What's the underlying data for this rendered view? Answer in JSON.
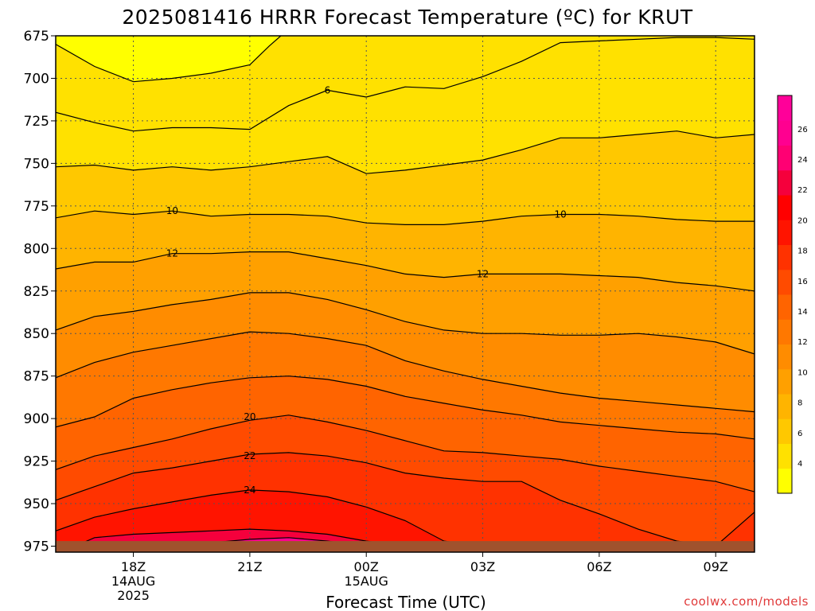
{
  "chart_data": {
    "type": "contour",
    "title": "2025081416 HRRR Forecast Temperature (ºC) for KRUT",
    "xlabel": "Forecast Time (UTC)",
    "credit": "coolwx.com/models",
    "y_axis": {
      "label": "",
      "ticks": [
        "675",
        "700",
        "725",
        "750",
        "775",
        "800",
        "825",
        "850",
        "875",
        "900",
        "925",
        "950",
        "975"
      ],
      "range": [
        675,
        975
      ],
      "inverted": true
    },
    "x_axis": {
      "ticks": [
        {
          "label": "18Z",
          "sub1": "14AUG",
          "sub2": "2025",
          "hour": 2
        },
        {
          "label": "21Z",
          "sub1": "",
          "sub2": "",
          "hour": 5
        },
        {
          "label": "00Z",
          "sub1": "15AUG",
          "sub2": "",
          "hour": 8
        },
        {
          "label": "03Z",
          "sub1": "",
          "sub2": "",
          "hour": 11
        },
        {
          "label": "06Z",
          "sub1": "",
          "sub2": "",
          "hour": 14
        },
        {
          "label": "09Z",
          "sub1": "",
          "sub2": "",
          "hour": 17
        }
      ],
      "range": [
        0,
        18
      ]
    },
    "grid": true,
    "colorbar": {
      "ticks": [
        "4",
        "6",
        "8",
        "10",
        "12",
        "14",
        "16",
        "18",
        "20",
        "22",
        "24",
        "26"
      ],
      "colors": [
        "#ffff00",
        "#ffe100",
        "#ffc800",
        "#ffb400",
        "#ffa000",
        "#ff8c00",
        "#ff7800",
        "#ff6400",
        "#ff4b00",
        "#ff3200",
        "#ff1400",
        "#ff0000",
        "#f5003c",
        "#ff0073",
        "#ff0090",
        "#ff0099"
      ]
    },
    "contour_labels": [
      {
        "text": "6",
        "hour": 7.0,
        "p": 707
      },
      {
        "text": "10",
        "hour": 3.0,
        "p": 778
      },
      {
        "text": "10",
        "hour": 13.0,
        "p": 780
      },
      {
        "text": "12",
        "hour": 3.0,
        "p": 803
      },
      {
        "text": "12",
        "hour": 11.0,
        "p": 815
      },
      {
        "text": "20",
        "hour": 5.0,
        "p": 899
      },
      {
        "text": "22",
        "hour": 5.0,
        "p": 922
      },
      {
        "text": "24",
        "hour": 5.0,
        "p": 942
      }
    ],
    "isotherms": [
      {
        "value": 6,
        "color": "#ffe100",
        "points": [
          [
            0,
            720
          ],
          [
            1,
            726
          ],
          [
            2,
            731
          ],
          [
            3,
            729
          ],
          [
            4,
            729
          ],
          [
            5,
            730
          ],
          [
            6,
            716
          ],
          [
            7,
            707
          ],
          [
            8,
            711
          ],
          [
            9,
            705
          ],
          [
            10,
            706
          ],
          [
            11,
            699
          ],
          [
            12,
            690
          ],
          [
            13,
            679
          ],
          [
            14,
            678
          ],
          [
            15,
            677
          ],
          [
            16,
            676
          ],
          [
            17,
            676
          ],
          [
            18,
            677
          ]
        ]
      },
      {
        "value": 8,
        "color": "#ffc800",
        "points": [
          [
            0,
            752
          ],
          [
            1,
            751
          ],
          [
            2,
            754
          ],
          [
            3,
            752
          ],
          [
            4,
            754
          ],
          [
            5,
            752
          ],
          [
            6,
            749
          ],
          [
            7,
            746
          ],
          [
            8,
            756
          ],
          [
            9,
            754
          ],
          [
            10,
            751
          ],
          [
            11,
            748
          ],
          [
            12,
            742
          ],
          [
            13,
            735
          ],
          [
            14,
            735
          ],
          [
            15,
            733
          ],
          [
            16,
            731
          ],
          [
            17,
            735
          ],
          [
            18,
            733
          ]
        ]
      },
      {
        "value": 10,
        "color": "#ffb400",
        "points": [
          [
            0,
            782
          ],
          [
            1,
            778
          ],
          [
            2,
            780
          ],
          [
            3,
            778
          ],
          [
            4,
            781
          ],
          [
            5,
            780
          ],
          [
            6,
            780
          ],
          [
            7,
            781
          ],
          [
            8,
            785
          ],
          [
            9,
            786
          ],
          [
            10,
            786
          ],
          [
            11,
            784
          ],
          [
            12,
            781
          ],
          [
            13,
            780
          ],
          [
            14,
            780
          ],
          [
            15,
            781
          ],
          [
            16,
            783
          ],
          [
            17,
            784
          ],
          [
            18,
            784
          ]
        ]
      },
      {
        "value": 12,
        "color": "#ffa000",
        "points": [
          [
            0,
            812
          ],
          [
            1,
            808
          ],
          [
            2,
            808
          ],
          [
            3,
            803
          ],
          [
            4,
            803
          ],
          [
            5,
            802
          ],
          [
            6,
            802
          ],
          [
            7,
            806
          ],
          [
            8,
            810
          ],
          [
            9,
            815
          ],
          [
            10,
            817
          ],
          [
            11,
            815
          ],
          [
            12,
            815
          ],
          [
            13,
            815
          ],
          [
            14,
            816
          ],
          [
            15,
            817
          ],
          [
            16,
            820
          ],
          [
            17,
            822
          ],
          [
            18,
            825
          ]
        ]
      },
      {
        "value": 14,
        "color": "#ff8c00",
        "points": [
          [
            0,
            848
          ],
          [
            1,
            840
          ],
          [
            2,
            837
          ],
          [
            3,
            833
          ],
          [
            4,
            830
          ],
          [
            5,
            826
          ],
          [
            6,
            826
          ],
          [
            7,
            830
          ],
          [
            8,
            836
          ],
          [
            9,
            843
          ],
          [
            10,
            848
          ],
          [
            11,
            850
          ],
          [
            12,
            850
          ],
          [
            13,
            851
          ],
          [
            14,
            851
          ],
          [
            15,
            850
          ],
          [
            16,
            852
          ],
          [
            17,
            855
          ],
          [
            18,
            862
          ]
        ]
      },
      {
        "value": 16,
        "color": "#ff7800",
        "points": [
          [
            0,
            876
          ],
          [
            1,
            867
          ],
          [
            2,
            861
          ],
          [
            3,
            857
          ],
          [
            4,
            853
          ],
          [
            5,
            849
          ],
          [
            6,
            850
          ],
          [
            7,
            853
          ],
          [
            8,
            857
          ],
          [
            9,
            866
          ],
          [
            10,
            872
          ],
          [
            11,
            877
          ],
          [
            12,
            881
          ],
          [
            13,
            885
          ],
          [
            14,
            888
          ],
          [
            15,
            890
          ],
          [
            16,
            892
          ],
          [
            17,
            894
          ],
          [
            18,
            896
          ]
        ]
      },
      {
        "value": 18,
        "color": "#ff6400",
        "points": [
          [
            0,
            905
          ],
          [
            1,
            899
          ],
          [
            2,
            888
          ],
          [
            3,
            883
          ],
          [
            4,
            879
          ],
          [
            5,
            876
          ],
          [
            6,
            875
          ],
          [
            7,
            877
          ],
          [
            8,
            881
          ],
          [
            9,
            887
          ],
          [
            10,
            891
          ],
          [
            11,
            895
          ],
          [
            12,
            898
          ],
          [
            13,
            902
          ],
          [
            14,
            904
          ],
          [
            15,
            906
          ],
          [
            16,
            908
          ],
          [
            17,
            909
          ],
          [
            18,
            912
          ]
        ]
      },
      {
        "value": 20,
        "color": "#ff4b00",
        "points": [
          [
            0,
            930
          ],
          [
            1,
            922
          ],
          [
            2,
            917
          ],
          [
            3,
            912
          ],
          [
            4,
            906
          ],
          [
            5,
            901
          ],
          [
            6,
            898
          ],
          [
            7,
            902
          ],
          [
            8,
            907
          ],
          [
            9,
            913
          ],
          [
            10,
            919
          ],
          [
            11,
            920
          ],
          [
            12,
            922
          ],
          [
            13,
            924
          ],
          [
            14,
            928
          ],
          [
            15,
            931
          ],
          [
            16,
            934
          ],
          [
            17,
            937
          ],
          [
            18,
            943
          ]
        ]
      },
      {
        "value": 22,
        "color": "#ff3200",
        "points": [
          [
            0,
            948
          ],
          [
            1,
            940
          ],
          [
            2,
            932
          ],
          [
            3,
            929
          ],
          [
            4,
            925
          ],
          [
            5,
            921
          ],
          [
            6,
            920
          ],
          [
            7,
            922
          ],
          [
            8,
            926
          ],
          [
            9,
            932
          ],
          [
            10,
            935
          ],
          [
            11,
            937
          ],
          [
            12,
            937
          ],
          [
            13,
            948
          ],
          [
            14,
            956
          ],
          [
            15,
            965
          ],
          [
            16,
            972
          ],
          [
            17,
            975
          ],
          [
            18,
            955
          ]
        ]
      },
      {
        "value": 24,
        "color": "#ff1400",
        "points": [
          [
            0,
            966
          ],
          [
            1,
            958
          ],
          [
            2,
            953
          ],
          [
            3,
            949
          ],
          [
            4,
            945
          ],
          [
            5,
            942
          ],
          [
            6,
            943
          ],
          [
            7,
            946
          ],
          [
            8,
            952
          ],
          [
            9,
            960
          ],
          [
            10,
            972
          ],
          [
            11,
            975
          ],
          [
            12,
            975
          ],
          [
            13,
            975
          ],
          [
            14,
            975
          ],
          [
            15,
            975
          ],
          [
            16,
            975
          ],
          [
            17,
            975
          ],
          [
            18,
            975
          ]
        ]
      },
      {
        "value": 26,
        "color": "#f5003c",
        "points": [
          [
            0,
            980
          ],
          [
            1,
            970
          ],
          [
            2,
            968
          ],
          [
            3,
            967
          ],
          [
            4,
            966
          ],
          [
            5,
            965
          ],
          [
            6,
            966
          ],
          [
            7,
            968
          ],
          [
            8,
            972
          ],
          [
            9,
            975
          ],
          [
            10,
            978
          ],
          [
            11,
            980
          ],
          [
            12,
            980
          ],
          [
            13,
            980
          ],
          [
            14,
            980
          ],
          [
            15,
            980
          ],
          [
            16,
            980
          ],
          [
            17,
            980
          ],
          [
            18,
            980
          ]
        ]
      }
    ],
    "warm_core": {
      "value": 27,
      "color": "#ff0090",
      "points": [
        [
          2,
          980
        ],
        [
          3,
          976
        ],
        [
          4,
          973
        ],
        [
          5,
          971
        ],
        [
          6,
          970
        ],
        [
          7,
          972
        ],
        [
          8,
          975
        ],
        [
          9,
          980
        ]
      ]
    },
    "cold_core": {
      "value": 4,
      "color": "#ffff00",
      "points": [
        [
          0,
          680
        ],
        [
          1,
          693
        ],
        [
          2,
          702
        ],
        [
          3,
          700
        ],
        [
          4,
          697
        ],
        [
          5,
          692
        ],
        [
          5.5,
          681
        ],
        [
          5.8,
          675
        ]
      ]
    },
    "ground": {
      "pressure": 972,
      "color": "#a0522d"
    }
  }
}
